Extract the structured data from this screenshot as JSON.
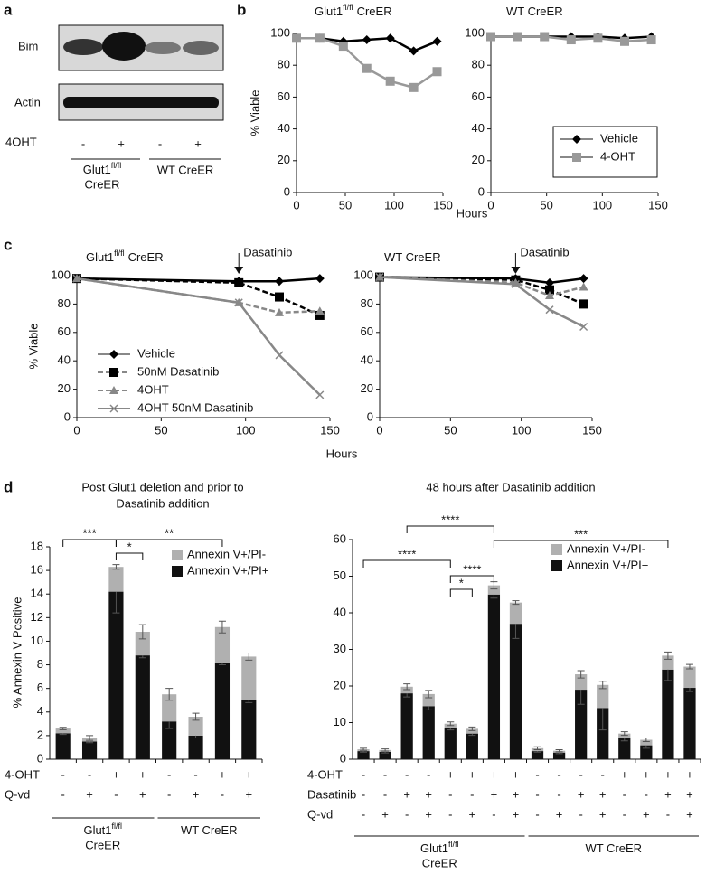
{
  "panel_labels": [
    "a",
    "b",
    "c",
    "d"
  ],
  "blot": {
    "rows": [
      "Bim",
      "Actin"
    ],
    "treatment": {
      "label": "4OHT",
      "values": [
        "-",
        "+",
        "-",
        "+"
      ]
    },
    "groups": [
      {
        "name": "Glut1",
        "sup": "fl/fl",
        "suffix": "CreER"
      },
      {
        "name": "WT CreER"
      }
    ]
  },
  "chart_data": [
    {
      "type": "line",
      "title": {
        "name": "Glut1",
        "sup": "fl/fl",
        "suffix": "CreER"
      },
      "y_label": "% Viable",
      "x_label": "Hours",
      "x": [
        0,
        24,
        48,
        72,
        96,
        120,
        144
      ],
      "xlim": [
        0,
        150
      ],
      "xticks": [
        0,
        50,
        100,
        150
      ],
      "ylim": [
        0,
        100
      ],
      "yticks": [
        0,
        20,
        40,
        60,
        80,
        100
      ],
      "series": [
        {
          "color": "#000000",
          "marker": "diamond",
          "values": [
            97,
            97,
            95,
            96,
            97,
            89,
            95
          ]
        },
        {
          "color": "#999999",
          "marker": "square",
          "values": [
            97,
            97,
            92,
            78,
            70,
            66,
            76
          ]
        }
      ]
    },
    {
      "type": "line",
      "title": {
        "name": "WT CreER"
      },
      "legend": "lower right",
      "x": [
        0,
        24,
        48,
        72,
        96,
        120,
        144
      ],
      "xlim": [
        0,
        150
      ],
      "xticks": [
        0,
        50,
        100,
        150
      ],
      "ylim": [
        0,
        100
      ],
      "yticks": [
        0,
        20,
        40,
        60,
        80,
        100
      ],
      "series": [
        {
          "name": "Vehicle",
          "color": "#000000",
          "marker": "diamond",
          "values": [
            98,
            98,
            98,
            98,
            98,
            97,
            98
          ]
        },
        {
          "name": "4-OHT",
          "color": "#999999",
          "marker": "square",
          "values": [
            98,
            98,
            98,
            96,
            97,
            95,
            96
          ]
        }
      ]
    },
    {
      "type": "line",
      "title": {
        "name": "Glut1",
        "sup": "fl/fl",
        "suffix": "CreER"
      },
      "y_label": "% Viable",
      "x_label": "Hours",
      "annotation": {
        "text": "Dasatinib",
        "x": 96
      },
      "legend": "lower left",
      "x": [
        0,
        96,
        120,
        144
      ],
      "xlim": [
        0,
        150
      ],
      "xticks": [
        0,
        50,
        100,
        150
      ],
      "ylim": [
        0,
        100
      ],
      "yticks": [
        0,
        20,
        40,
        60,
        80,
        100
      ],
      "series": [
        {
          "name": "Vehicle",
          "color": "#000000",
          "marker": "diamond",
          "dashed": false,
          "values": [
            98,
            96,
            96,
            98
          ]
        },
        {
          "name": "50nM Dasatinib",
          "color": "#000000",
          "marker": "square",
          "dashed": true,
          "values": [
            98,
            95,
            85,
            72
          ]
        },
        {
          "name": "4OHT",
          "color": "#888888",
          "marker": "triangle",
          "dashed": true,
          "values": [
            98,
            81,
            74,
            75
          ]
        },
        {
          "name": "4OHT 50nM Dasatinib",
          "color": "#888888",
          "marker": "x",
          "dashed": false,
          "values": [
            98,
            81,
            44,
            16
          ]
        }
      ]
    },
    {
      "type": "line",
      "title": {
        "name": "WT CreER"
      },
      "annotation": {
        "text": "Dasatinib",
        "x": 96
      },
      "x": [
        0,
        96,
        120,
        144
      ],
      "xlim": [
        0,
        150
      ],
      "xticks": [
        0,
        50,
        100,
        150
      ],
      "ylim": [
        0,
        100
      ],
      "yticks": [
        0,
        20,
        40,
        60,
        80,
        100
      ],
      "series": [
        {
          "color": "#000000",
          "marker": "diamond",
          "dashed": false,
          "values": [
            99,
            98,
            95,
            98
          ]
        },
        {
          "color": "#000000",
          "marker": "square",
          "dashed": true,
          "values": [
            99,
            97,
            90,
            80
          ]
        },
        {
          "color": "#888888",
          "marker": "triangle",
          "dashed": true,
          "values": [
            99,
            95,
            86,
            92
          ]
        },
        {
          "color": "#888888",
          "marker": "x",
          "dashed": false,
          "values": [
            99,
            94,
            76,
            64
          ]
        }
      ]
    },
    {
      "type": "stacked_bar",
      "title": [
        "Post Glut1 deletion and prior to",
        "Dasatinib addition"
      ],
      "y_label": "% Annexin V Positive",
      "ylim": [
        0,
        18
      ],
      "yticks": [
        0,
        2,
        4,
        6,
        8,
        10,
        12,
        14,
        16,
        18
      ],
      "legend": "upper right",
      "series": [
        {
          "name": "Annexin V+/PI-",
          "color": "#b0b0b0",
          "values": [
            0.4,
            0.3,
            2.1,
            2.0,
            2.3,
            1.6,
            3.0,
            3.7
          ],
          "errors": [
            0.1,
            0.2,
            0.2,
            0.6,
            0.5,
            0.3,
            0.5,
            0.3
          ]
        },
        {
          "name": "Annexin V+/PI+",
          "color": "#111111",
          "values": [
            2.2,
            1.5,
            14.2,
            8.8,
            3.2,
            2.0,
            8.2,
            5.0
          ],
          "errors": [
            0.1,
            0.1,
            1.8,
            0.2,
            0.6,
            0.2,
            0.2,
            0.2
          ]
        }
      ],
      "rows": [
        {
          "label": "4-OHT",
          "values": [
            "-",
            "-",
            "+",
            "+",
            "-",
            "-",
            "+",
            "+"
          ]
        },
        {
          "label": "Q-vd",
          "values": [
            "-",
            "+",
            "-",
            "+",
            "-",
            "+",
            "-",
            "+"
          ]
        }
      ],
      "groups": [
        {
          "name": "Glut1",
          "sup": "fl/fl",
          "suffix": "CreER",
          "from": 0,
          "to": 3
        },
        {
          "name": "WT CreER",
          "from": 4,
          "to": 7
        }
      ],
      "brackets": [
        {
          "text": "***",
          "from": 0,
          "to": 2
        },
        {
          "text": "*",
          "from": 2,
          "to": 3
        },
        {
          "text": "**",
          "from": 2,
          "to": 6
        }
      ]
    },
    {
      "type": "stacked_bar",
      "title": "48 hours after Dasatinib addition",
      "ylim": [
        0,
        60
      ],
      "yticks": [
        0,
        10,
        20,
        30,
        40,
        50,
        60
      ],
      "legend": "upper right",
      "series": [
        {
          "name": "Annexin V+/PI-",
          "color": "#b0b0b0",
          "values": [
            0.5,
            0.5,
            1.8,
            3.3,
            1.2,
            1.3,
            2.5,
            5.8,
            0.8,
            0.5,
            4.2,
            6.3,
            1.2,
            1.5,
            3.8,
            5.8
          ],
          "errors": [
            0.3,
            0.3,
            0.8,
            1,
            0.5,
            0.5,
            1,
            0.5,
            0.4,
            0.3,
            1,
            1,
            0.5,
            0.5,
            1,
            0.6
          ]
        },
        {
          "name": "Annexin V+/PI+",
          "color": "#111111",
          "values": [
            2.2,
            2.0,
            18.0,
            14.5,
            8.5,
            7.0,
            45.0,
            37.0,
            2.2,
            1.8,
            19.0,
            14.0,
            5.8,
            3.8,
            24.5,
            19.5
          ],
          "errors": [
            0.3,
            0.3,
            1,
            1,
            0.5,
            0.5,
            1,
            4,
            0.3,
            0.3,
            4,
            6,
            0.8,
            0.8,
            3,
            1
          ]
        }
      ],
      "rows": [
        {
          "label": "4-OHT",
          "values": [
            "-",
            "-",
            "-",
            "-",
            "+",
            "+",
            "+",
            "+",
            "-",
            "-",
            "-",
            "-",
            "+",
            "+",
            "+",
            "+"
          ]
        },
        {
          "label": "Dasatinib",
          "values": [
            "-",
            "-",
            "+",
            "+",
            "-",
            "-",
            "+",
            "+",
            "-",
            "-",
            "+",
            "+",
            "-",
            "-",
            "+",
            "+"
          ]
        },
        {
          "label": "Q-vd",
          "values": [
            "-",
            "+",
            "-",
            "+",
            "-",
            "+",
            "-",
            "+",
            "-",
            "+",
            "-",
            "+",
            "-",
            "+",
            "-",
            "+"
          ]
        }
      ],
      "groups": [
        {
          "name": "Glut1",
          "sup": "fl/fl",
          "suffix": "CreER",
          "from": 0,
          "to": 7
        },
        {
          "name": "WT CreER",
          "from": 8,
          "to": 15
        }
      ],
      "brackets": [
        {
          "text": "****",
          "from": 2,
          "to": 6
        },
        {
          "text": "***",
          "from": 6,
          "to": 14
        },
        {
          "text": "****",
          "from": 0,
          "to": 4
        },
        {
          "text": "****",
          "from": 4,
          "to": 6
        },
        {
          "text": "*",
          "from": 4,
          "to": 5
        }
      ]
    }
  ]
}
